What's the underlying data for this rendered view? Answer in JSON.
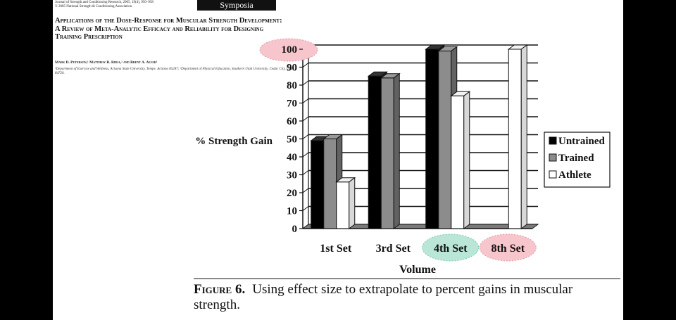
{
  "header": {
    "journal_line1": "Journal of Strength and Conditioning Research, 2005, 19(4), 950–958",
    "journal_line2": "© 2005 National Strength & Conditioning Association",
    "section": "Symposia"
  },
  "article": {
    "title": "Applications of the Dose-Response for Muscular Strength Development: A Review of Meta-Analytic Efficacy and Reliability for Designing Training Prescription",
    "authors": "Mark D. Peterson,¹ Matthew R. Rhea,² and Brent A. Alvar¹",
    "affiliation": "¹Department of Exercise and Wellness, Arizona State University, Tempe, Arizona 85287; ²Department of Physical Education, Southern Utah University, Cedar City, Utah 84720."
  },
  "figure": {
    "label": "Figure 6.",
    "caption": "Using effect size to extrapolate to percent gains in muscular strength."
  },
  "chart_data": {
    "type": "bar",
    "categories": [
      "1st Set",
      "3rd Set",
      "4th Set",
      "8th Set"
    ],
    "series": [
      {
        "name": "Untrained",
        "values": [
          49,
          85,
          100,
          null
        ],
        "color": "#000000"
      },
      {
        "name": "Trained",
        "values": [
          50,
          84,
          99,
          null
        ],
        "color": "#8c8c8c"
      },
      {
        "name": "Athlete",
        "values": [
          26,
          null,
          74,
          100
        ],
        "color": "#ffffff"
      }
    ],
    "ylabel": "% Strength Gain",
    "xlabel": "Volume",
    "ylim": [
      0,
      100
    ],
    "yticks": [
      0,
      10,
      20,
      30,
      40,
      50,
      60,
      70,
      80,
      90,
      100
    ],
    "grid": true,
    "legend": "right",
    "highlights": [
      {
        "target": "100",
        "color": "#f7c6cc"
      },
      {
        "target": "4th Set",
        "color": "#b9e6d6"
      },
      {
        "target": "8th Set",
        "color": "#f7c6cc"
      }
    ]
  }
}
